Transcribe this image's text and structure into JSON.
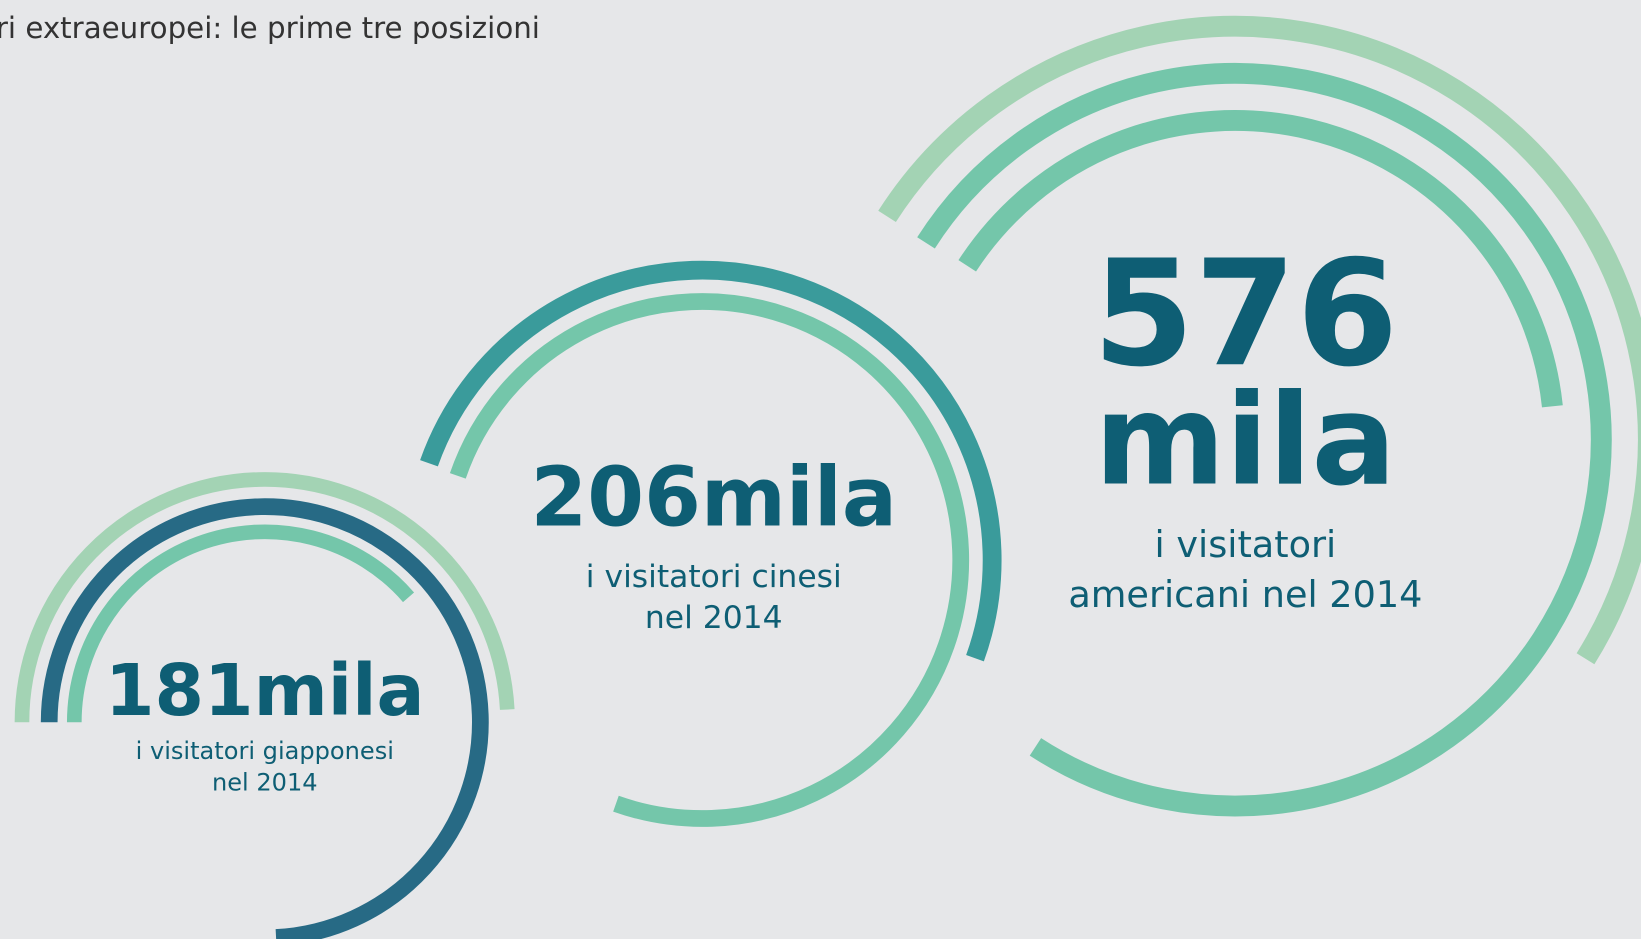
{
  "title": "ri extraeuropei: le prime tre posizioni",
  "items": [
    {
      "value_lines": [
        "181mila"
      ],
      "label_lines": [
        "i visitatori giapponesi",
        "nel 2014"
      ]
    },
    {
      "value_lines": [
        "206mila"
      ],
      "label_lines": [
        "i visitatori cinesi",
        "nel 2014"
      ]
    },
    {
      "value_lines": [
        "576",
        "mila"
      ],
      "label_lines": [
        "i visitatori",
        "americani nel 2014"
      ]
    }
  ]
}
